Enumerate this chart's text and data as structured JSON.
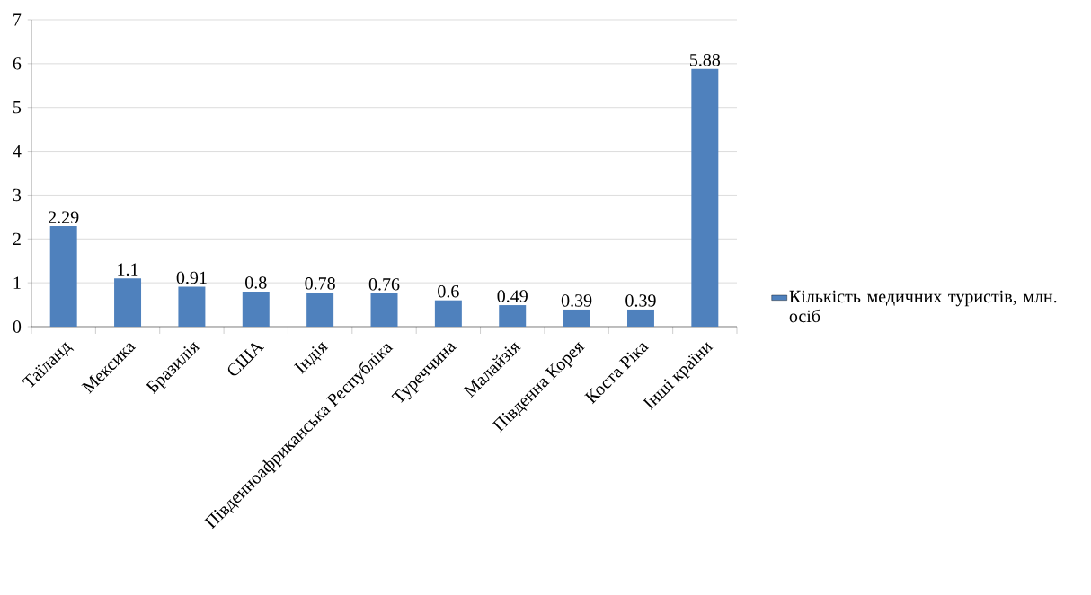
{
  "chart_data": {
    "type": "bar",
    "categories": [
      "Таїланд",
      "Мексика",
      "Бразилія",
      "США",
      "Індія",
      "Південноафриканська Республіка",
      "Туреччина",
      "Малайзія",
      "Південна Корея",
      "Коста Ріка",
      "Інші країни"
    ],
    "series": [
      {
        "name": "Кількість медичних туристів, млн. осіб",
        "color": "#4f81bd",
        "values": [
          2.29,
          1.1,
          0.91,
          0.8,
          0.78,
          0.76,
          0.6,
          0.49,
          0.39,
          0.39,
          5.88
        ]
      }
    ],
    "ylim": [
      0,
      7
    ],
    "yticks": [
      0,
      1,
      2,
      3,
      4,
      5,
      6,
      7
    ],
    "grid": "y",
    "legend": "right",
    "data_labels": true
  }
}
